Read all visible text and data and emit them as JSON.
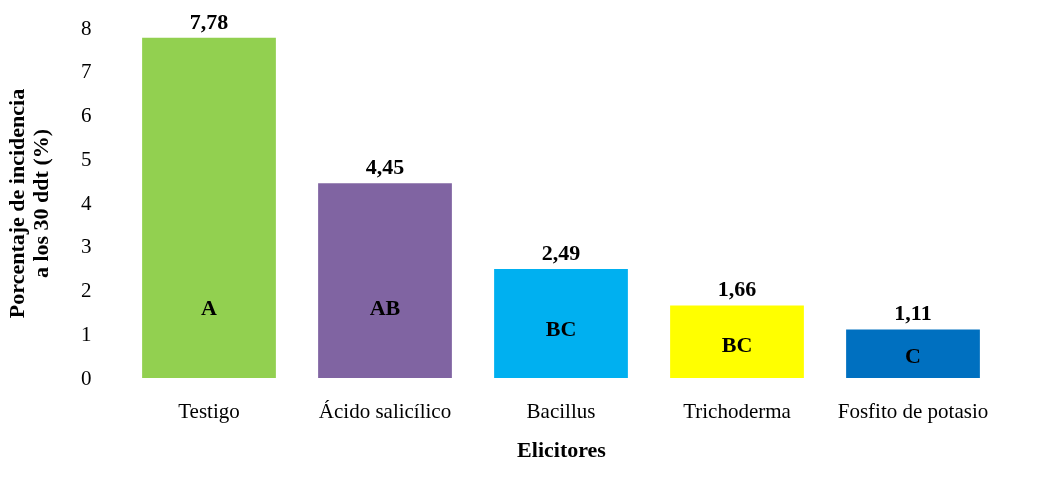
{
  "chart_data": {
    "type": "bar",
    "xlabel": "Elicitores",
    "ylabel": "Porcentaje de incidencia a los 30 ddt (%)",
    "categories": [
      "Testigo",
      "Ácido salicílico",
      "Bacillus",
      "Trichoderma",
      "Fosfito de potasio"
    ],
    "values": [
      7.78,
      4.45,
      2.49,
      1.66,
      1.11
    ],
    "colors": [
      "#92d050",
      "#8064a2",
      "#00b0f0",
      "#ffff00",
      "#0070c0"
    ],
    "value_labels": [
      "7,78",
      "4,45",
      "2,49",
      "1,66",
      "1,11"
    ],
    "ylim": [
      0,
      8
    ],
    "yticks": [
      0,
      1,
      2,
      3,
      4,
      5,
      6,
      7,
      8
    ],
    "grid": false,
    "legend": false,
    "annotations": [
      "A",
      "AB",
      "BC",
      "BC",
      "C"
    ]
  }
}
